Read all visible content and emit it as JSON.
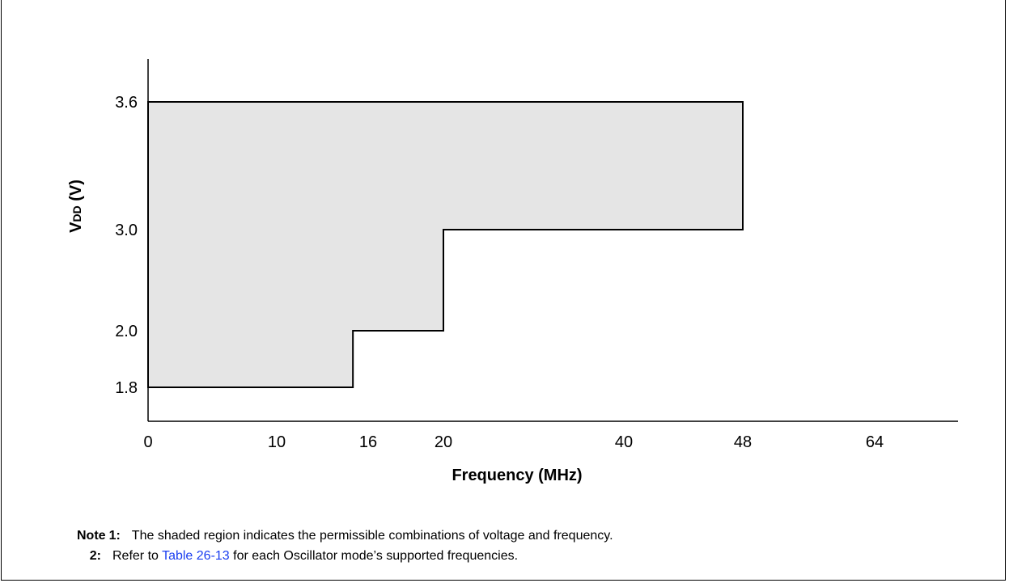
{
  "chart_data": {
    "type": "area",
    "xlabel": "Frequency (MHz)",
    "ylabel_main": "V",
    "ylabel_sub": "DD",
    "ylabel_suffix": " (V)",
    "xlim": [
      0,
      68
    ],
    "ylim": [
      1.5,
      4.0
    ],
    "x_ticks": [
      0,
      10,
      16,
      20,
      40,
      48,
      64
    ],
    "y_ticks": [
      "3.6",
      "3.0",
      "2.0",
      "1.8"
    ],
    "region": {
      "name": "permissible operating region",
      "fill": "#e5e5e5",
      "points": [
        [
          0,
          1.8
        ],
        [
          15,
          1.8
        ],
        [
          15,
          2.0
        ],
        [
          20,
          2.0
        ],
        [
          20,
          3.0
        ],
        [
          48,
          3.0
        ],
        [
          48,
          3.6
        ],
        [
          0,
          3.6
        ]
      ]
    }
  },
  "notes": {
    "prefix": "Note",
    "items": [
      {
        "num": "1:",
        "text": "The shaded region indicates the permissible combinations of voltage and frequency."
      },
      {
        "num": "2:",
        "text_before": "Refer to ",
        "link": "Table 26-13",
        "text_after": " for each Oscillator mode’s supported frequencies."
      }
    ]
  },
  "colors": {
    "link": "#1a3ef0",
    "shade": "#e5e5e5",
    "line": "#000000"
  }
}
